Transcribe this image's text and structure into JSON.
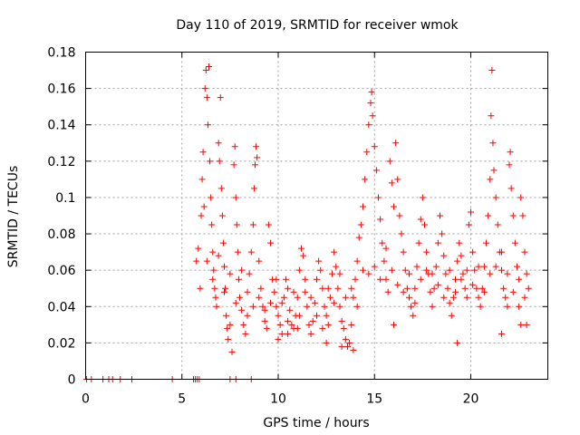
{
  "chart_data": {
    "type": "scatter",
    "title": "Day 110 of 2019, SRMTID for receiver wmok",
    "xlabel": "GPS time / hours",
    "ylabel": "SRMTID / TECUs",
    "xlim": [
      0,
      24
    ],
    "ylim": [
      0,
      0.18
    ],
    "grid": true,
    "marker": "+",
    "marker_color": "#ff0000",
    "x_ticks": [
      0,
      5,
      10,
      15,
      20
    ],
    "x_tick_labels": [
      "0",
      "5",
      "10",
      "15",
      "20"
    ],
    "y_ticks": [
      0,
      0.02,
      0.04,
      0.06,
      0.08,
      0.1,
      0.12,
      0.14,
      0.16,
      0.18
    ],
    "y_tick_labels": [
      "0",
      "0.02",
      "0.04",
      "0.06",
      "0.08",
      "0.1",
      "0.12",
      "0.14",
      "0.16",
      "0.18"
    ],
    "series": [
      {
        "name": "SRMTID",
        "points": [
          [
            0.05,
            0
          ],
          [
            0.3,
            0
          ],
          [
            0.9,
            0
          ],
          [
            1.2,
            0
          ],
          [
            1.4,
            0
          ],
          [
            1.8,
            0
          ],
          [
            2.4,
            0
          ],
          [
            4.5,
            0
          ],
          [
            5.6,
            0
          ],
          [
            5.7,
            0
          ],
          [
            5.8,
            0
          ],
          [
            5.9,
            0
          ],
          [
            7.5,
            0
          ],
          [
            7.8,
            0
          ],
          [
            8.6,
            0
          ],
          [
            5.75,
            0.065
          ],
          [
            5.85,
            0.072
          ],
          [
            5.95,
            0.05
          ],
          [
            6.0,
            0.09
          ],
          [
            6.05,
            0.11
          ],
          [
            6.1,
            0.125
          ],
          [
            6.15,
            0.095
          ],
          [
            6.2,
            0.16
          ],
          [
            6.25,
            0.17
          ],
          [
            6.3,
            0.155
          ],
          [
            6.35,
            0.14
          ],
          [
            6.4,
            0.172
          ],
          [
            6.45,
            0.12
          ],
          [
            6.5,
            0.1
          ],
          [
            6.55,
            0.085
          ],
          [
            6.6,
            0.07
          ],
          [
            6.65,
            0.06
          ],
          [
            6.7,
            0.05
          ],
          [
            6.75,
            0.045
          ],
          [
            6.8,
            0.04
          ],
          [
            6.9,
            0.13
          ],
          [
            6.95,
            0.12
          ],
          [
            7.0,
            0.155
          ],
          [
            7.05,
            0.105
          ],
          [
            7.1,
            0.09
          ],
          [
            7.15,
            0.075
          ],
          [
            7.2,
            0.062
          ],
          [
            7.25,
            0.05
          ],
          [
            7.3,
            0.035
          ],
          [
            7.35,
            0.028
          ],
          [
            7.4,
            0.022
          ],
          [
            7.5,
            0.03
          ],
          [
            7.6,
            0.015
          ],
          [
            7.7,
            0.118
          ],
          [
            7.75,
            0.128
          ],
          [
            7.8,
            0.1
          ],
          [
            7.85,
            0.085
          ],
          [
            7.9,
            0.07
          ],
          [
            7.95,
            0.055
          ],
          [
            8.0,
            0.045
          ],
          [
            8.1,
            0.038
          ],
          [
            8.2,
            0.03
          ],
          [
            8.3,
            0.025
          ],
          [
            8.4,
            0.048
          ],
          [
            8.5,
            0.058
          ],
          [
            8.6,
            0.07
          ],
          [
            8.7,
            0.085
          ],
          [
            8.75,
            0.105
          ],
          [
            8.8,
            0.118
          ],
          [
            8.85,
            0.128
          ],
          [
            8.9,
            0.122
          ],
          [
            9.0,
            0.065
          ],
          [
            9.1,
            0.05
          ],
          [
            9.2,
            0.04
          ],
          [
            9.3,
            0.032
          ],
          [
            9.4,
            0.028
          ],
          [
            9.5,
            0.085
          ],
          [
            9.6,
            0.075
          ],
          [
            9.7,
            0.055
          ],
          [
            9.8,
            0.048
          ],
          [
            9.9,
            0.04
          ],
          [
            10.0,
            0.035
          ],
          [
            10.1,
            0.03
          ],
          [
            10.2,
            0.025
          ],
          [
            10.3,
            0.045
          ],
          [
            10.4,
            0.055
          ],
          [
            10.5,
            0.05
          ],
          [
            10.6,
            0.038
          ],
          [
            10.7,
            0.03
          ],
          [
            10.8,
            0.028
          ],
          [
            10.9,
            0.035
          ],
          [
            11.0,
            0.045
          ],
          [
            11.1,
            0.06
          ],
          [
            11.2,
            0.072
          ],
          [
            11.3,
            0.068
          ],
          [
            11.4,
            0.055
          ],
          [
            11.5,
            0.04
          ],
          [
            11.6,
            0.03
          ],
          [
            11.7,
            0.025
          ],
          [
            11.8,
            0.032
          ],
          [
            11.9,
            0.042
          ],
          [
            12.0,
            0.055
          ],
          [
            12.1,
            0.065
          ],
          [
            12.2,
            0.06
          ],
          [
            12.3,
            0.05
          ],
          [
            12.4,
            0.04
          ],
          [
            12.5,
            0.035
          ],
          [
            12.6,
            0.03
          ],
          [
            12.7,
            0.045
          ],
          [
            12.8,
            0.058
          ],
          [
            12.9,
            0.07
          ],
          [
            13.0,
            0.062
          ],
          [
            13.1,
            0.05
          ],
          [
            13.2,
            0.04
          ],
          [
            13.3,
            0.032
          ],
          [
            13.4,
            0.028
          ],
          [
            13.5,
            0.022
          ],
          [
            13.6,
            0.018
          ],
          [
            13.7,
            0.02
          ],
          [
            13.8,
            0.03
          ],
          [
            13.9,
            0.045
          ],
          [
            14.0,
            0.055
          ],
          [
            14.1,
            0.065
          ],
          [
            14.2,
            0.078
          ],
          [
            14.3,
            0.085
          ],
          [
            14.4,
            0.095
          ],
          [
            14.5,
            0.11
          ],
          [
            14.6,
            0.125
          ],
          [
            14.7,
            0.14
          ],
          [
            14.8,
            0.152
          ],
          [
            14.85,
            0.158
          ],
          [
            14.9,
            0.145
          ],
          [
            15.0,
            0.128
          ],
          [
            15.1,
            0.115
          ],
          [
            15.2,
            0.1
          ],
          [
            15.3,
            0.088
          ],
          [
            15.4,
            0.075
          ],
          [
            15.5,
            0.065
          ],
          [
            15.6,
            0.055
          ],
          [
            15.7,
            0.048
          ],
          [
            15.8,
            0.12
          ],
          [
            15.9,
            0.108
          ],
          [
            16.0,
            0.095
          ],
          [
            16.1,
            0.13
          ],
          [
            16.2,
            0.11
          ],
          [
            16.3,
            0.09
          ],
          [
            16.4,
            0.08
          ],
          [
            16.5,
            0.07
          ],
          [
            16.6,
            0.06
          ],
          [
            16.7,
            0.05
          ],
          [
            16.8,
            0.045
          ],
          [
            16.9,
            0.04
          ],
          [
            17.0,
            0.035
          ],
          [
            17.1,
            0.05
          ],
          [
            17.2,
            0.062
          ],
          [
            17.3,
            0.075
          ],
          [
            17.4,
            0.088
          ],
          [
            17.5,
            0.1
          ],
          [
            17.6,
            0.085
          ],
          [
            17.7,
            0.07
          ],
          [
            17.8,
            0.058
          ],
          [
            17.9,
            0.048
          ],
          [
            18.0,
            0.04
          ],
          [
            18.1,
            0.05
          ],
          [
            18.2,
            0.062
          ],
          [
            18.3,
            0.075
          ],
          [
            18.4,
            0.09
          ],
          [
            18.5,
            0.08
          ],
          [
            18.6,
            0.068
          ],
          [
            18.7,
            0.058
          ],
          [
            18.8,
            0.05
          ],
          [
            18.9,
            0.042
          ],
          [
            19.0,
            0.035
          ],
          [
            19.1,
            0.045
          ],
          [
            19.2,
            0.055
          ],
          [
            19.3,
            0.065
          ],
          [
            19.4,
            0.075
          ],
          [
            19.5,
            0.068
          ],
          [
            19.6,
            0.058
          ],
          [
            19.7,
            0.05
          ],
          [
            19.8,
            0.045
          ],
          [
            19.9,
            0.085
          ],
          [
            20.0,
            0.092
          ],
          [
            20.1,
            0.07
          ],
          [
            20.2,
            0.06
          ],
          [
            20.3,
            0.05
          ],
          [
            20.4,
            0.045
          ],
          [
            20.5,
            0.04
          ],
          [
            20.6,
            0.05
          ],
          [
            20.7,
            0.062
          ],
          [
            20.8,
            0.075
          ],
          [
            20.9,
            0.09
          ],
          [
            21.0,
            0.11
          ],
          [
            21.05,
            0.145
          ],
          [
            21.1,
            0.17
          ],
          [
            21.15,
            0.13
          ],
          [
            21.2,
            0.115
          ],
          [
            21.3,
            0.1
          ],
          [
            21.4,
            0.085
          ],
          [
            21.5,
            0.07
          ],
          [
            21.6,
            0.06
          ],
          [
            21.7,
            0.05
          ],
          [
            21.8,
            0.045
          ],
          [
            21.9,
            0.04
          ],
          [
            22.0,
            0.118
          ],
          [
            22.05,
            0.125
          ],
          [
            22.1,
            0.105
          ],
          [
            22.2,
            0.09
          ],
          [
            22.3,
            0.075
          ],
          [
            22.4,
            0.062
          ],
          [
            22.5,
            0.055
          ],
          [
            22.6,
            0.1
          ],
          [
            22.7,
            0.09
          ],
          [
            22.8,
            0.07
          ],
          [
            22.9,
            0.058
          ],
          [
            23.0,
            0.05
          ],
          [
            6.3,
            0.065
          ],
          [
            6.6,
            0.055
          ],
          [
            6.9,
            0.068
          ],
          [
            7.2,
            0.048
          ],
          [
            7.5,
            0.058
          ],
          [
            7.8,
            0.042
          ],
          [
            8.1,
            0.06
          ],
          [
            8.4,
            0.035
          ],
          [
            8.7,
            0.04
          ],
          [
            9.0,
            0.045
          ],
          [
            9.3,
            0.038
          ],
          [
            9.6,
            0.042
          ],
          [
            9.9,
            0.055
          ],
          [
            10.2,
            0.042
          ],
          [
            10.5,
            0.032
          ],
          [
            10.8,
            0.048
          ],
          [
            11.1,
            0.035
          ],
          [
            11.4,
            0.048
          ],
          [
            11.7,
            0.045
          ],
          [
            12.0,
            0.035
          ],
          [
            12.3,
            0.028
          ],
          [
            12.6,
            0.05
          ],
          [
            12.9,
            0.042
          ],
          [
            13.2,
            0.058
          ],
          [
            13.5,
            0.045
          ],
          [
            13.8,
            0.05
          ],
          [
            14.1,
            0.04
          ],
          [
            14.4,
            0.06
          ],
          [
            14.7,
            0.058
          ],
          [
            15.0,
            0.062
          ],
          [
            15.3,
            0.055
          ],
          [
            15.6,
            0.072
          ],
          [
            15.9,
            0.06
          ],
          [
            16.2,
            0.052
          ],
          [
            16.5,
            0.048
          ],
          [
            16.8,
            0.058
          ],
          [
            17.1,
            0.042
          ],
          [
            17.4,
            0.055
          ],
          [
            17.7,
            0.06
          ],
          [
            18.0,
            0.058
          ],
          [
            18.3,
            0.052
          ],
          [
            18.6,
            0.045
          ],
          [
            18.9,
            0.06
          ],
          [
            19.2,
            0.048
          ],
          [
            19.5,
            0.055
          ],
          [
            19.8,
            0.06
          ],
          [
            20.1,
            0.052
          ],
          [
            20.4,
            0.062
          ],
          [
            20.7,
            0.048
          ],
          [
            21.0,
            0.058
          ],
          [
            21.3,
            0.062
          ],
          [
            21.6,
            0.07
          ],
          [
            21.9,
            0.058
          ],
          [
            22.2,
            0.048
          ],
          [
            22.5,
            0.04
          ],
          [
            22.8,
            0.045
          ],
          [
            10.0,
            0.022
          ],
          [
            10.5,
            0.025
          ],
          [
            11.0,
            0.028
          ],
          [
            12.5,
            0.02
          ],
          [
            13.3,
            0.018
          ],
          [
            13.9,
            0.016
          ],
          [
            16.0,
            0.03
          ],
          [
            19.3,
            0.02
          ],
          [
            21.6,
            0.025
          ],
          [
            22.6,
            0.03
          ],
          [
            22.9,
            0.03
          ]
        ]
      }
    ]
  }
}
